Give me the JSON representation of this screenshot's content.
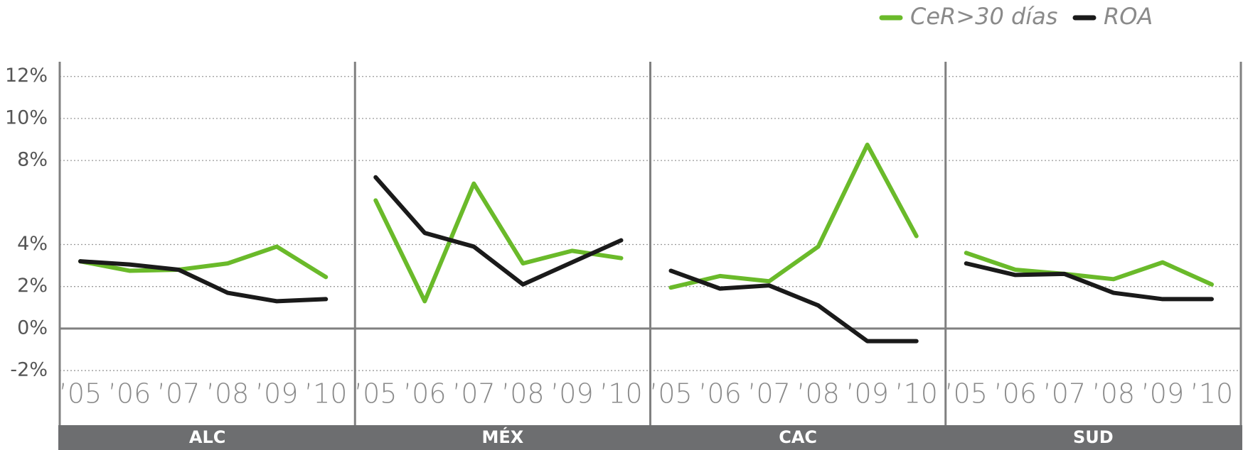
{
  "chart_data": {
    "type": "line",
    "panels": [
      "ALC",
      "MÉX",
      "CAC",
      "SUD"
    ],
    "categories": [
      "’05",
      "’06",
      "’07",
      "’08",
      "’09",
      "’10"
    ],
    "ylim": [
      -4.6,
      12.7
    ],
    "yticks": [
      {
        "value": 12,
        "label": "12%"
      },
      {
        "value": 10,
        "label": "10%"
      },
      {
        "value": 8,
        "label": "8%"
      },
      {
        "value": 4,
        "label": "4%"
      },
      {
        "value": 2,
        "label": "2%"
      },
      {
        "value": 0,
        "label": "0%"
      },
      {
        "value": -2,
        "label": "-2%"
      }
    ],
    "grid": true,
    "legend": "top-right",
    "series": [
      {
        "name": "CeR>30 días",
        "color": "#6aba2a",
        "values": [
          [
            3.2,
            2.75,
            2.8,
            3.1,
            3.9,
            2.45
          ],
          [
            6.1,
            1.3,
            6.9,
            3.1,
            3.7,
            3.35
          ],
          [
            1.95,
            2.5,
            2.25,
            3.9,
            8.75,
            4.4
          ],
          [
            3.6,
            2.8,
            2.6,
            2.35,
            3.15,
            2.1
          ]
        ]
      },
      {
        "name": "ROA",
        "color": "#1a1a1a",
        "values": [
          [
            3.2,
            3.05,
            2.8,
            1.7,
            1.3,
            1.4
          ],
          [
            7.2,
            4.55,
            3.9,
            2.1,
            3.15,
            4.2
          ],
          [
            2.75,
            1.9,
            2.05,
            1.1,
            -0.6,
            -0.6
          ],
          [
            3.1,
            2.55,
            2.6,
            1.7,
            1.4,
            1.4
          ]
        ]
      }
    ]
  }
}
